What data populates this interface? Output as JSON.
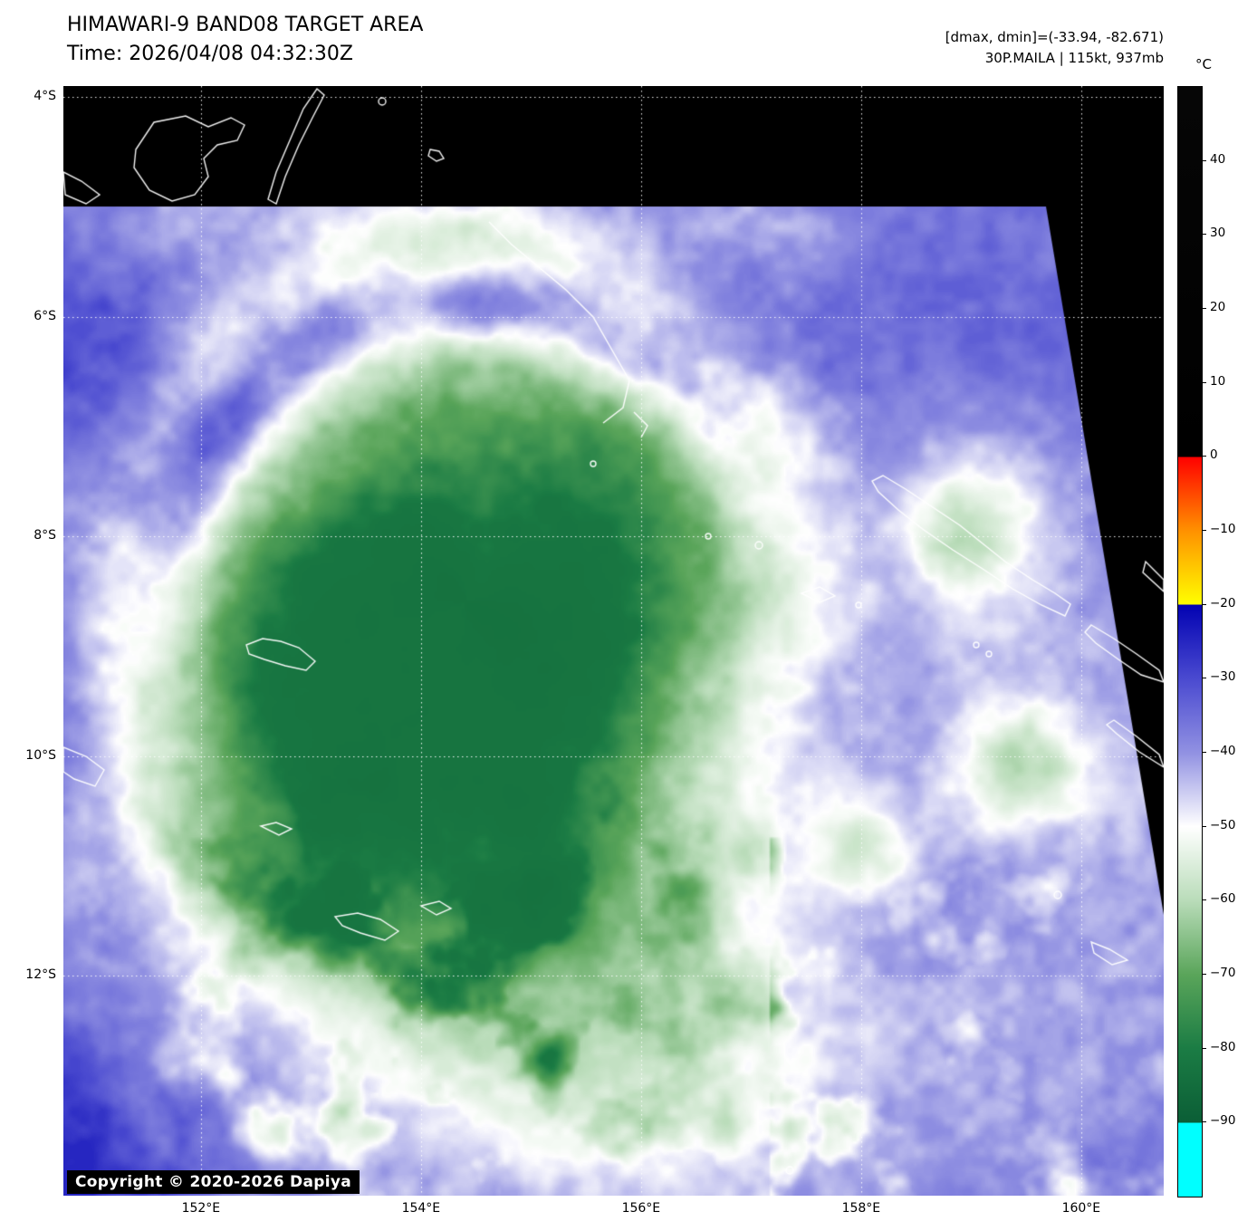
{
  "header": {
    "title": "HIMAWARI-9 BAND08 TARGET AREA",
    "time": "Time: 2026/04/08 04:32:30Z",
    "dmax_dmin": "[dmax, dmin]=(-33.94, -82.671)",
    "storm_info": "30P.MAILA | 115kt, 937mb"
  },
  "chart_data": {
    "type": "heatmap",
    "title": "HIMAWARI-9 BAND08 TARGET AREA",
    "satellite": "HIMAWARI-9",
    "band": "BAND08",
    "time_utc": "2026/04/08 04:32:30Z",
    "storm": {
      "id": "30P",
      "name": "MAILA",
      "intensity_kt": 115,
      "pressure_mb": 937
    },
    "observed": {
      "dmax_c": -33.94,
      "dmin_c": -82.671
    },
    "axes": {
      "lon_range": [
        150.75,
        160.75
      ],
      "lat_range": [
        3.9,
        14.0
      ],
      "grid": "dotted-white",
      "lon_ticks": [
        {
          "value": 152,
          "label": "152°E"
        },
        {
          "value": 154,
          "label": "154°E"
        },
        {
          "value": 156,
          "label": "156°E"
        },
        {
          "value": 158,
          "label": "158°E"
        },
        {
          "value": 160,
          "label": "160°E"
        }
      ],
      "lat_ticks": [
        {
          "value": 4,
          "label": "4°S"
        },
        {
          "value": 6,
          "label": "6°S"
        },
        {
          "value": 8,
          "label": "8°S"
        },
        {
          "value": 10,
          "label": "10°S"
        },
        {
          "value": 12,
          "label": "12°S"
        }
      ]
    },
    "colorbar": {
      "unit": "°C",
      "vmax": 50,
      "vmin": -100,
      "ticks": [
        {
          "v": 40,
          "label": "40"
        },
        {
          "v": 30,
          "label": "30"
        },
        {
          "v": 20,
          "label": "20"
        },
        {
          "v": 10,
          "label": "10"
        },
        {
          "v": 0,
          "label": "0"
        },
        {
          "v": -10,
          "label": "−10"
        },
        {
          "v": -20,
          "label": "−20"
        },
        {
          "v": -30,
          "label": "−30"
        },
        {
          "v": -40,
          "label": "−40"
        },
        {
          "v": -50,
          "label": "−50"
        },
        {
          "v": -60,
          "label": "−60"
        },
        {
          "v": -70,
          "label": "−70"
        },
        {
          "v": -80,
          "label": "−80"
        },
        {
          "v": -90,
          "label": "−90"
        }
      ],
      "stops": [
        {
          "v": 50,
          "c": "#060606"
        },
        {
          "v": 0.01,
          "c": "#000000"
        },
        {
          "v": 0,
          "c": "#ff0000"
        },
        {
          "v": -10,
          "c": "#ff9100"
        },
        {
          "v": -20,
          "c": "#ffff00"
        },
        {
          "v": -20.01,
          "c": "#0202b2"
        },
        {
          "v": -30,
          "c": "#4a4ad0"
        },
        {
          "v": -40,
          "c": "#9191e2"
        },
        {
          "v": -50,
          "c": "#ffffff"
        },
        {
          "v": -60,
          "c": "#b9dcb9"
        },
        {
          "v": -70,
          "c": "#5aa55a"
        },
        {
          "v": -80,
          "c": "#1b7c44"
        },
        {
          "v": -90,
          "c": "#0b5e36"
        },
        {
          "v": -90.01,
          "c": "#00ffff"
        },
        {
          "v": -100,
          "c": "#00ffff"
        }
      ]
    },
    "copyright": "Copyright © 2020-2026 Dapiya"
  }
}
